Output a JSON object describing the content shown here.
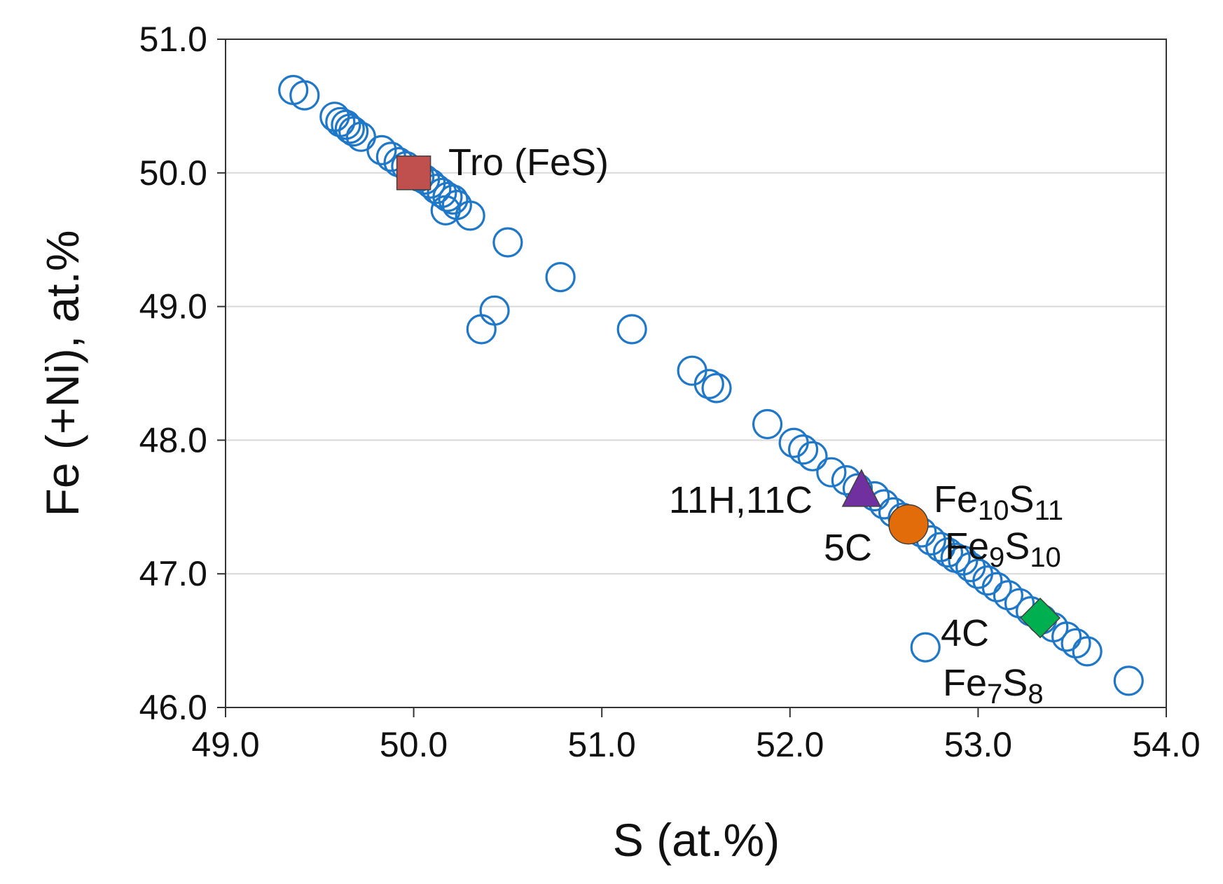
{
  "chart_data": {
    "type": "scatter",
    "title": "",
    "xlabel": "S (at.%)",
    "ylabel": "Fe (+Ni), at.%",
    "xlim": [
      49.0,
      54.0
    ],
    "ylim": [
      46.0,
      51.0
    ],
    "xticks": [
      "49.0",
      "50.0",
      "51.0",
      "52.0",
      "53.0",
      "54.0"
    ],
    "yticks": [
      "46.0",
      "47.0",
      "48.0",
      "49.0",
      "50.0",
      "51.0"
    ],
    "grid": "horizontal",
    "colors": {
      "measured": "#1f77c8",
      "troilite": "#c0504d",
      "fe10s11": "#7030a0",
      "fe9s10": "#e36c0a",
      "fe7s8": "#00b050",
      "grid": "#d9d9d9",
      "axis": "#333333"
    },
    "measured_points": [
      [
        49.36,
        50.62
      ],
      [
        49.42,
        50.58
      ],
      [
        49.58,
        50.42
      ],
      [
        49.61,
        50.38
      ],
      [
        49.64,
        50.36
      ],
      [
        49.66,
        50.33
      ],
      [
        49.68,
        50.31
      ],
      [
        49.72,
        50.27
      ],
      [
        49.83,
        50.17
      ],
      [
        49.88,
        50.12
      ],
      [
        49.92,
        50.08
      ],
      [
        49.96,
        50.05
      ],
      [
        50.0,
        50.0
      ],
      [
        50.03,
        49.97
      ],
      [
        50.06,
        49.95
      ],
      [
        50.09,
        49.92
      ],
      [
        50.12,
        49.88
      ],
      [
        50.15,
        49.85
      ],
      [
        50.18,
        49.82
      ],
      [
        50.21,
        49.8
      ],
      [
        50.23,
        49.76
      ],
      [
        50.17,
        49.72
      ],
      [
        50.3,
        49.68
      ],
      [
        50.5,
        49.48
      ],
      [
        50.78,
        49.22
      ],
      [
        50.43,
        48.97
      ],
      [
        50.36,
        48.83
      ],
      [
        51.16,
        48.83
      ],
      [
        51.48,
        48.52
      ],
      [
        51.57,
        48.42
      ],
      [
        51.61,
        48.39
      ],
      [
        51.88,
        48.12
      ],
      [
        52.02,
        47.98
      ],
      [
        52.07,
        47.93
      ],
      [
        52.12,
        47.88
      ],
      [
        52.22,
        47.76
      ],
      [
        52.3,
        47.7
      ],
      [
        52.36,
        47.64
      ],
      [
        52.45,
        47.58
      ],
      [
        52.5,
        47.52
      ],
      [
        52.55,
        47.46
      ],
      [
        52.6,
        47.42
      ],
      [
        52.65,
        47.36
      ],
      [
        52.7,
        47.31
      ],
      [
        52.75,
        47.25
      ],
      [
        52.8,
        47.2
      ],
      [
        52.84,
        47.16
      ],
      [
        52.88,
        47.12
      ],
      [
        52.92,
        47.1
      ],
      [
        52.96,
        47.05
      ],
      [
        53.0,
        47.0
      ],
      [
        53.05,
        46.95
      ],
      [
        53.1,
        46.9
      ],
      [
        53.16,
        46.84
      ],
      [
        53.22,
        46.78
      ],
      [
        53.28,
        46.72
      ],
      [
        53.34,
        46.66
      ],
      [
        53.4,
        46.6
      ],
      [
        53.47,
        46.53
      ],
      [
        53.52,
        46.48
      ],
      [
        53.58,
        46.42
      ],
      [
        52.72,
        46.45
      ],
      [
        53.8,
        46.2
      ]
    ],
    "reference_phases": [
      {
        "marker": "square",
        "x": 50.0,
        "y": 50.0,
        "color": "#c0504d",
        "label_parts": [
          {
            "t": "Tro (FeS)"
          }
        ]
      },
      {
        "marker": "triangle",
        "x": 52.38,
        "y": 47.62,
        "color": "#7030a0",
        "label_parts": [
          {
            "t": "Fe"
          },
          {
            "t": "10",
            "sub": true
          },
          {
            "t": "S"
          },
          {
            "t": "11",
            "sub": true
          }
        ]
      },
      {
        "marker": "circle",
        "x": 52.63,
        "y": 47.37,
        "color": "#e36c0a",
        "label_parts": [
          {
            "t": "Fe"
          },
          {
            "t": "9",
            "sub": true
          },
          {
            "t": "S"
          },
          {
            "t": "10",
            "sub": true
          }
        ]
      },
      {
        "marker": "diamond",
        "x": 53.33,
        "y": 46.67,
        "color": "#00b050",
        "label_parts": [
          {
            "t": "Fe"
          },
          {
            "t": "7",
            "sub": true
          },
          {
            "t": "S"
          },
          {
            "t": "8",
            "sub": true
          }
        ]
      }
    ],
    "annotations": [
      "11H,11C",
      "5C",
      "4C"
    ]
  }
}
